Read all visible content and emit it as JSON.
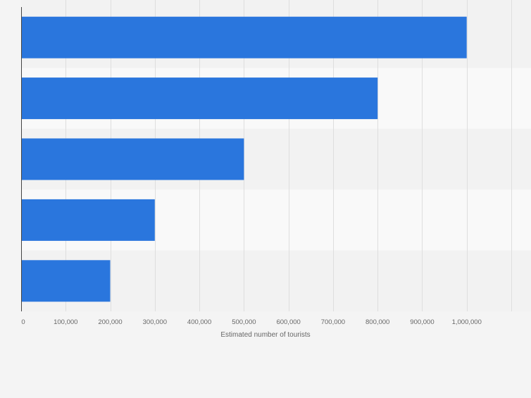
{
  "chart_data": {
    "type": "bar",
    "orientation": "horizontal",
    "title": "",
    "xlabel": "Estimated number of tourists",
    "ylabel": "",
    "categories": [
      "",
      "",
      "",
      "",
      ""
    ],
    "values": [
      1000000,
      800000,
      500000,
      300000,
      200000
    ],
    "xlim": [
      0,
      1100000
    ],
    "x_ticks": [
      0,
      100000,
      200000,
      300000,
      400000,
      500000,
      600000,
      700000,
      800000,
      900000,
      1000000
    ],
    "x_tick_labels": [
      "0",
      "100,000",
      "200,000",
      "300,000",
      "400,000",
      "500,000",
      "600,000",
      "700,000",
      "800,000",
      "900,000",
      "1,000,000"
    ],
    "grid": true,
    "legend": "none",
    "colors": {
      "bar": "#2a76dd",
      "band_dark": "#f2f2f2",
      "band_light": "#f9f9f9",
      "grid": "#dedede",
      "axis": "#444444",
      "tick_text": "#666666",
      "background": "#f4f4f4"
    }
  }
}
